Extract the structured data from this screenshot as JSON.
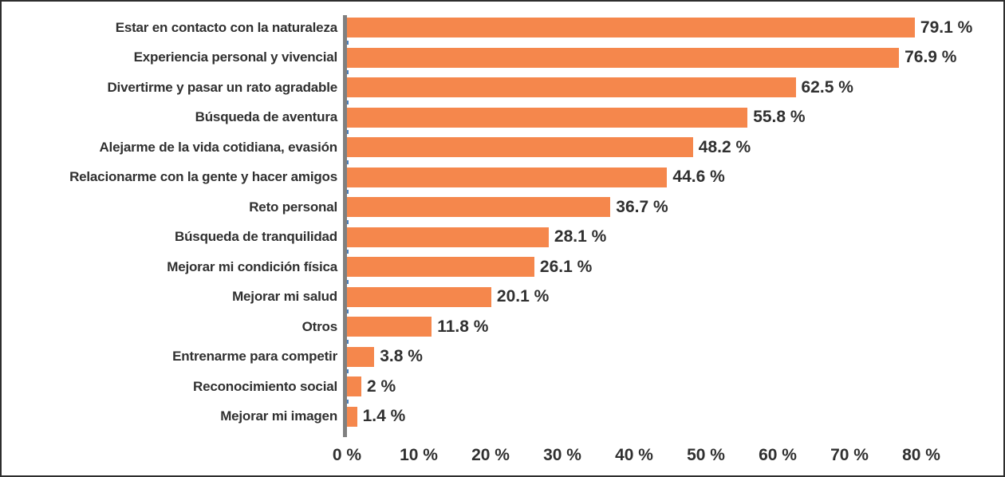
{
  "chart_data": {
    "type": "bar",
    "orientation": "horizontal",
    "title": "",
    "xlabel": "",
    "ylabel": "",
    "grid": false,
    "legend": false,
    "categories": [
      "Estar en contacto con la naturaleza",
      "Experiencia personal y vivencial",
      "Divertirme y pasar un rato agradable",
      "Búsqueda de aventura",
      "Alejarme de la vida cotidiana, evasión",
      "Relacionarme con la gente y hacer amigos",
      "Reto personal",
      "Búsqueda de tranquilidad",
      "Mejorar mi condición física",
      "Mejorar mi salud",
      "Otros",
      "Entrenarme para competir",
      "Reconocimiento social",
      "Mejorar mi imagen"
    ],
    "values": [
      79.1,
      76.9,
      62.5,
      55.8,
      48.2,
      44.6,
      36.7,
      28.1,
      26.1,
      20.1,
      11.8,
      3.8,
      2,
      1.4
    ],
    "value_labels": [
      "79.1 %",
      "76.9 %",
      "62.5 %",
      "55.8 %",
      "48.2 %",
      "44.6 %",
      "36.7 %",
      "28.1 %",
      "26.1 %",
      "20.1 %",
      "11.8 %",
      "3.8 %",
      "2 %",
      "1.4 %"
    ],
    "x_axis": {
      "range": [
        0,
        80
      ],
      "tick_values": [
        0,
        10,
        20,
        30,
        40,
        50,
        60,
        70,
        80
      ],
      "tick_labels": [
        "0 %",
        "10 %",
        "20 %",
        "30 %",
        "40 %",
        "50 %",
        "60 %",
        "70 %",
        "80 %"
      ]
    },
    "colors": {
      "bar": "#f5874c",
      "axis_line": "#808080",
      "category_tick": "#4a7ebb",
      "text": "#303030",
      "frame_border": "#2e2e2e",
      "background": "#ffffff"
    }
  }
}
